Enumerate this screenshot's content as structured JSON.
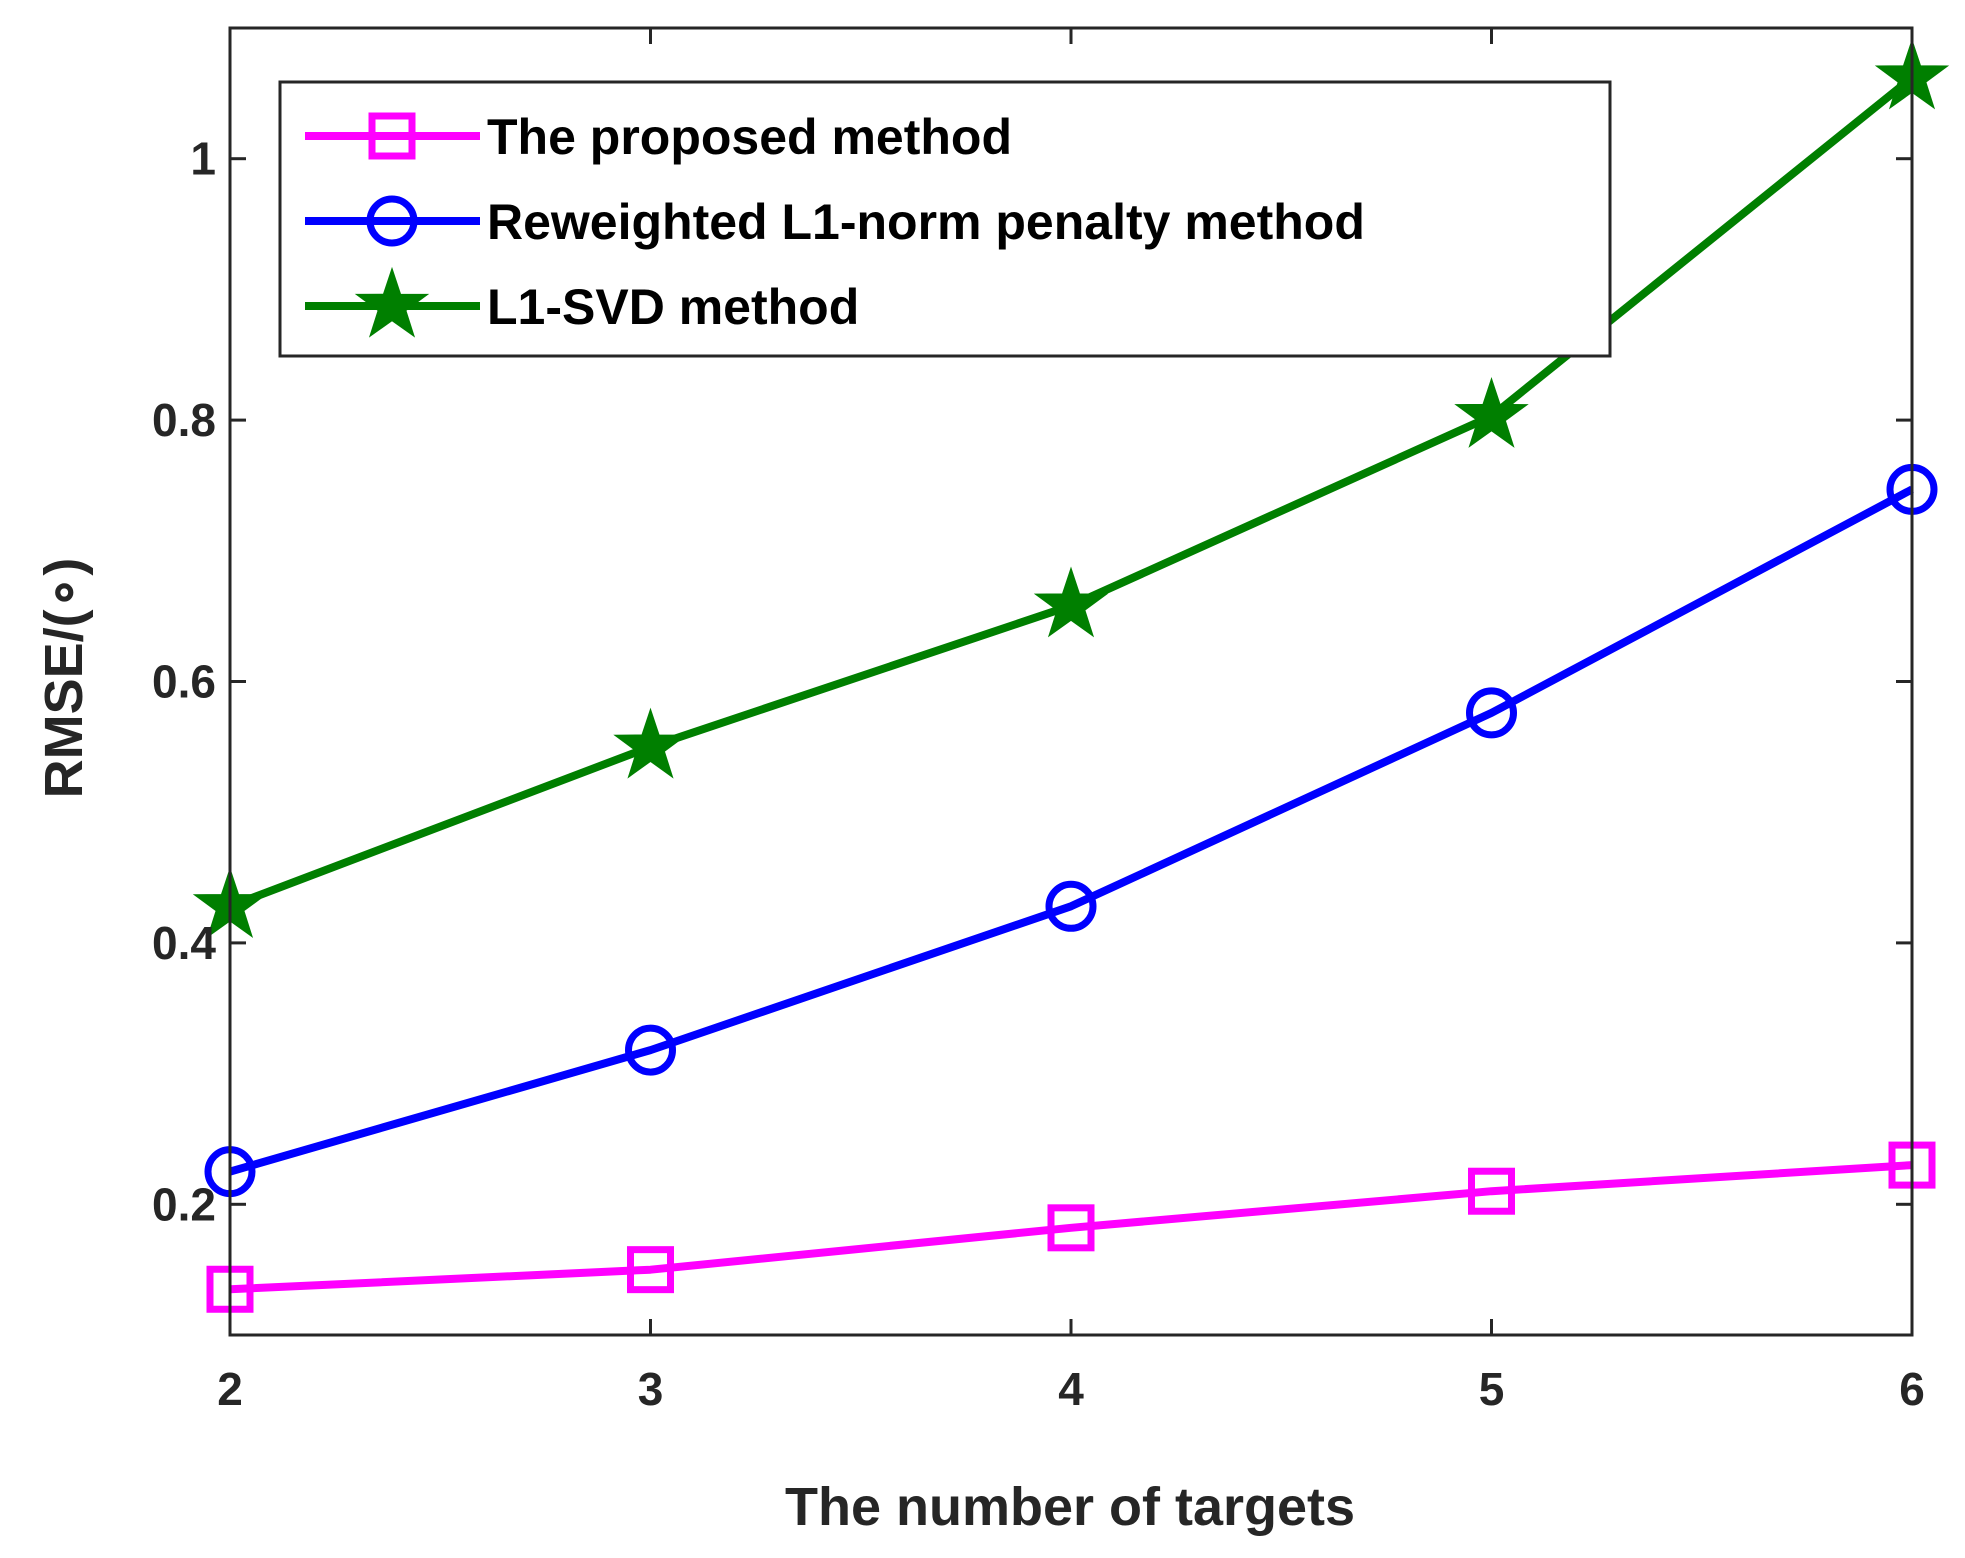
{
  "chart_data": {
    "type": "line",
    "title": "",
    "xlabel": "The number of targets",
    "ylabel": "RMSE/(∘)",
    "x": [
      2,
      3,
      4,
      5,
      6
    ],
    "xlim": [
      2,
      6
    ],
    "ylim": [
      0.1,
      1.1
    ],
    "xticks": [
      "2",
      "3",
      "4",
      "5",
      "6"
    ],
    "yticks": [
      {
        "value": 0.2,
        "label": "0.2"
      },
      {
        "value": 0.4,
        "label": "0.4"
      },
      {
        "value": 0.6,
        "label": "0.6"
      },
      {
        "value": 0.8,
        "label": "0.8"
      },
      {
        "value": 1.0,
        "label": "1"
      }
    ],
    "grid": false,
    "legend_position": "top-left",
    "series": [
      {
        "name": "The proposed method",
        "color": "#ff00ff",
        "marker": "square",
        "values": [
          0.135,
          0.15,
          0.182,
          0.21,
          0.23
        ]
      },
      {
        "name": "Reweighted L1-norm penalty method",
        "color": "#0000ff",
        "marker": "circle",
        "values": [
          0.225,
          0.318,
          0.428,
          0.576,
          0.747
        ]
      },
      {
        "name": "L1-SVD method",
        "color": "#007f00",
        "marker": "star",
        "values": [
          0.428,
          0.55,
          0.658,
          0.803,
          1.062
        ]
      }
    ]
  }
}
